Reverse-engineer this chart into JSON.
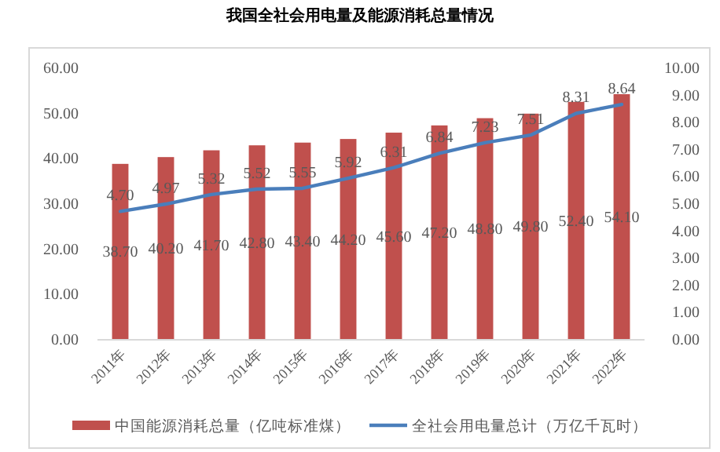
{
  "chart_data": {
    "type": "bar",
    "title": "我国全社会用电量及能源消耗总量情况",
    "categories": [
      "2011年",
      "2012年",
      "2013年",
      "2014年",
      "2015年",
      "2016年",
      "2017年",
      "2018年",
      "2019年",
      "2020年",
      "2021年",
      "2022年"
    ],
    "series": [
      {
        "name": "中国能源消耗总量（亿吨标准煤）",
        "color": "#c0504d",
        "values": [
          38.7,
          40.2,
          41.7,
          42.8,
          43.4,
          44.2,
          45.6,
          47.2,
          48.8,
          49.8,
          52.4,
          54.1
        ],
        "value_labels": [
          "38.70",
          "40.20",
          "41.70",
          "42.80",
          "43.40",
          "44.20",
          "45.60",
          "47.20",
          "48.80",
          "49.80",
          "52.40",
          "54.10"
        ]
      },
      {
        "name": "全社会用电量总计（万亿千瓦时）",
        "type": "line",
        "axis": "y2",
        "color": "#4a7ebb",
        "values": [
          4.7,
          4.97,
          5.32,
          5.52,
          5.55,
          5.92,
          6.31,
          6.84,
          7.23,
          7.51,
          8.31,
          8.64
        ],
        "value_labels": [
          "4.70",
          "4.97",
          "5.32",
          "5.52",
          "5.55",
          "5.92",
          "6.31",
          "6.84",
          "7.23",
          "7.51",
          "8.31",
          "8.64"
        ]
      }
    ],
    "ylim": [
      0,
      60
    ],
    "yticks": [
      {
        "value": 0,
        "label": "0.00"
      },
      {
        "value": 10,
        "label": "10.00"
      },
      {
        "value": 20,
        "label": "20.00"
      },
      {
        "value": 30,
        "label": "30.00"
      },
      {
        "value": 40,
        "label": "40.00"
      },
      {
        "value": 50,
        "label": "50.00"
      },
      {
        "value": 60,
        "label": "60.00"
      }
    ],
    "y2lim": [
      0,
      10
    ],
    "y2ticks": [
      {
        "value": 0,
        "label": "0.00"
      },
      {
        "value": 1,
        "label": "1.00"
      },
      {
        "value": 2,
        "label": "2.00"
      },
      {
        "value": 3,
        "label": "3.00"
      },
      {
        "value": 4,
        "label": "4.00"
      },
      {
        "value": 5,
        "label": "5.00"
      },
      {
        "value": 6,
        "label": "6.00"
      },
      {
        "value": 7,
        "label": "7.00"
      },
      {
        "value": 8,
        "label": "8.00"
      },
      {
        "value": 9,
        "label": "9.00"
      },
      {
        "value": 10,
        "label": "10.00"
      }
    ],
    "legend": "bottom"
  }
}
